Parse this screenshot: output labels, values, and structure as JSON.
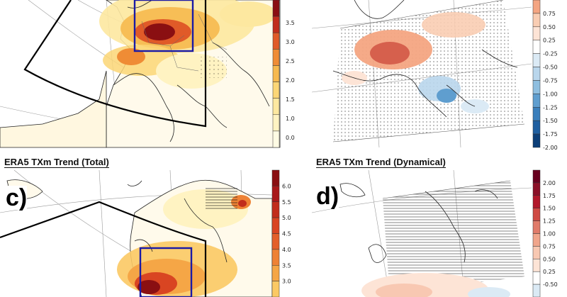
{
  "panels": [
    {
      "id": "a",
      "title": "",
      "letter": "",
      "colorbar": {
        "labels": [
          "0.0",
          "1.0",
          "1.5",
          "2.0",
          "2.5",
          "3.0",
          "3.5"
        ],
        "colors": [
          "#fffbe4",
          "#fff3c2",
          "#fde8a0",
          "#fbd676",
          "#f6b94e",
          "#ef8c35",
          "#e05a28",
          "#c12d1c",
          "#8a0f12"
        ]
      }
    },
    {
      "id": "b",
      "title": "",
      "letter": "",
      "colorbar": {
        "labels": [
          "0.75",
          "0.50",
          "0.25",
          "-0.25",
          "-0.50",
          "-0.75",
          "-1.00",
          "-1.25",
          "-1.50",
          "-1.75",
          "-2.00"
        ],
        "colors": [
          "#f4a582",
          "#f9cdb3",
          "#fde4d6",
          "#ffffff",
          "#dbeaf5",
          "#b9d6ec",
          "#8fbfe0",
          "#5f9ecf",
          "#3a7fbc",
          "#1f5fa0",
          "#0c3f78"
        ]
      }
    },
    {
      "id": "c",
      "title": "ERA5 TXm Trend (Total)",
      "letter": "c)",
      "colorbar": {
        "labels": [
          "6.0",
          "5.5",
          "5.0",
          "4.5",
          "4.0",
          "3.5",
          "3.0"
        ],
        "colors": [
          "#8a0f12",
          "#a8181a",
          "#c12d1c",
          "#d94522",
          "#e35f2a",
          "#ee8235",
          "#f5a646",
          "#fbc964"
        ]
      }
    },
    {
      "id": "d",
      "title": "ERA5 TXm Trend (Dynamical)",
      "letter": "d)",
      "colorbar": {
        "labels": [
          "2.00",
          "1.75",
          "1.50",
          "1.25",
          "1.00",
          "0.75",
          "0.50",
          "0.25",
          "-0.50"
        ],
        "colors": [
          "#67001f",
          "#8b1028",
          "#b2182b",
          "#cf4a44",
          "#e07b6a",
          "#f0a58b",
          "#f8c8b2",
          "#fde4d6",
          "#ffffff",
          "#dbeaf5"
        ]
      }
    }
  ],
  "colors": {
    "land": "#fffdf2",
    "ocean": "#ffffff",
    "coast": "#222222",
    "box_blue": "#1a1aa6",
    "grid": "#9a9a9a"
  }
}
